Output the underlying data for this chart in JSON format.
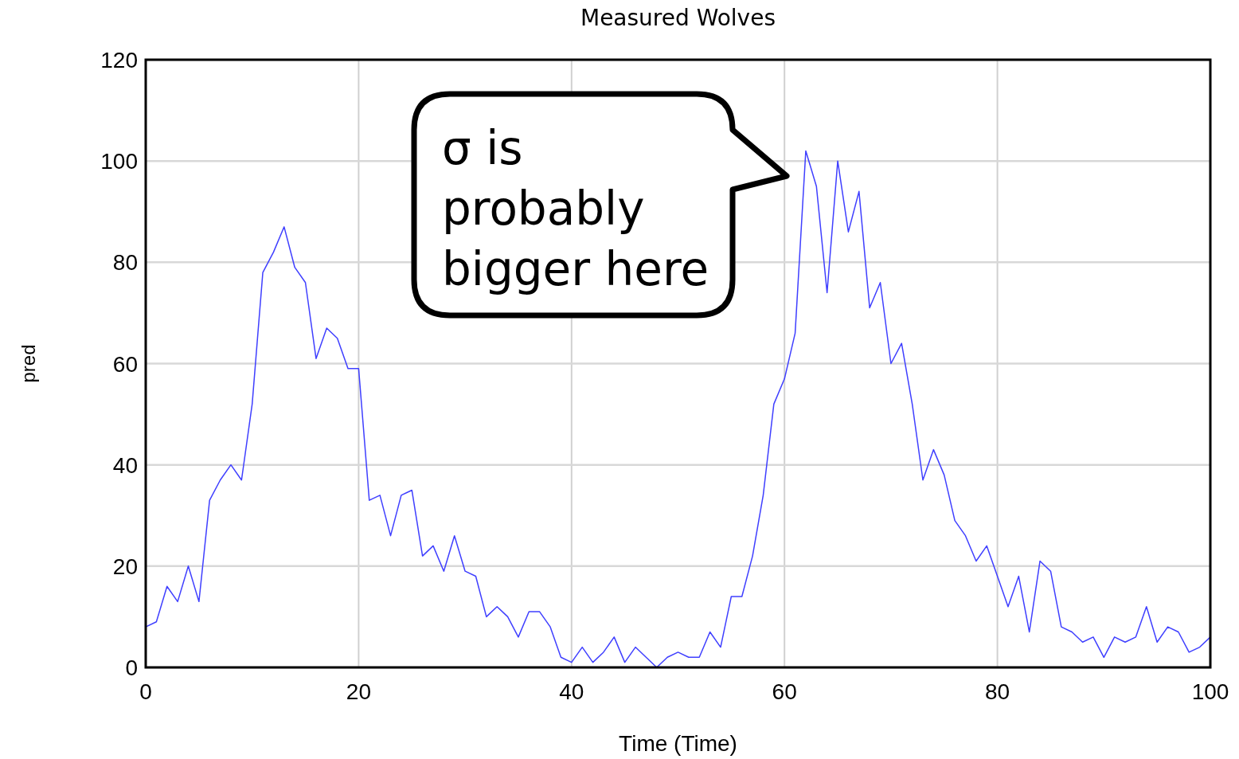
{
  "chart_data": {
    "type": "line",
    "title": "Measured Wolves",
    "xlabel": "Time (Time)",
    "ylabel": "pred",
    "x": [
      0,
      1,
      2,
      3,
      4,
      5,
      6,
      7,
      8,
      9,
      10,
      11,
      12,
      13,
      14,
      15,
      16,
      17,
      18,
      19,
      20,
      21,
      22,
      23,
      24,
      25,
      26,
      27,
      28,
      29,
      30,
      31,
      32,
      33,
      34,
      35,
      36,
      37,
      38,
      39,
      40,
      41,
      42,
      43,
      44,
      45,
      46,
      47,
      48,
      49,
      50,
      51,
      52,
      53,
      54,
      55,
      56,
      57,
      58,
      59,
      60,
      61,
      62,
      63,
      64,
      65,
      66,
      67,
      68,
      69,
      70,
      71,
      72,
      73,
      74,
      75,
      76,
      77,
      78,
      79,
      80,
      81,
      82,
      83,
      84,
      85,
      86,
      87,
      88,
      89,
      90,
      91,
      92,
      93,
      94,
      95,
      96,
      97,
      98,
      99,
      100
    ],
    "series": [
      {
        "color": "#3f3fff",
        "values": [
          8,
          9,
          16,
          13,
          20,
          13,
          33,
          37,
          40,
          37,
          52,
          78,
          82,
          87,
          79,
          76,
          61,
          67,
          65,
          59,
          59,
          33,
          34,
          26,
          34,
          35,
          22,
          24,
          19,
          26,
          19,
          18,
          10,
          12,
          10,
          6,
          11,
          11,
          8,
          2,
          1,
          4,
          1,
          3,
          6,
          1,
          4,
          2,
          0,
          2,
          3,
          2,
          2,
          7,
          4,
          14,
          14,
          22,
          34,
          52,
          57,
          66,
          102,
          95,
          74,
          100,
          86,
          94,
          71,
          76,
          60,
          64,
          52,
          37,
          43,
          38,
          29,
          26,
          21,
          24,
          18,
          12,
          18,
          7,
          21,
          19,
          8,
          7,
          5,
          6,
          2,
          6,
          5,
          6,
          12,
          5,
          8,
          7,
          3,
          4,
          6
        ]
      }
    ],
    "xlim": [
      0,
      100
    ],
    "xticks": [
      0,
      20,
      40,
      60,
      80,
      100
    ],
    "ylim": [
      0,
      120
    ],
    "yticks": [
      0,
      20,
      40,
      60,
      80,
      100,
      120
    ],
    "grid": true,
    "marker": "none",
    "line_style": "solid",
    "annotations": [
      "σ is probably bigger here"
    ]
  }
}
